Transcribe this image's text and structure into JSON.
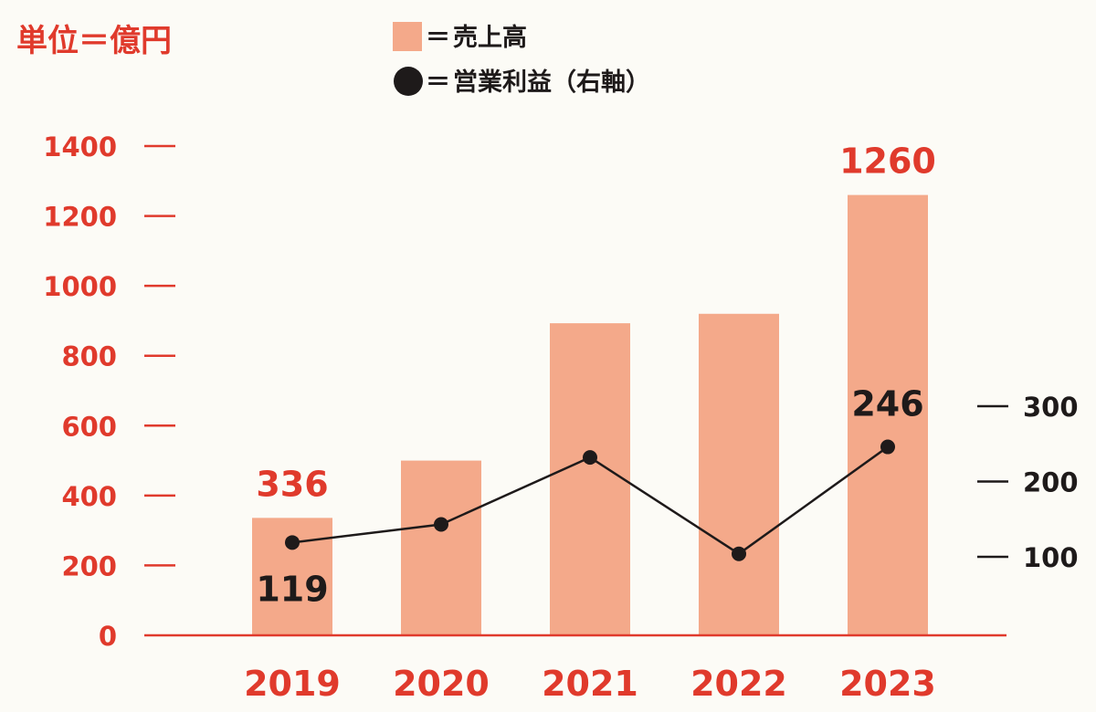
{
  "chart_data": {
    "type": "bar",
    "unit_label": "単位＝億円",
    "categories": [
      "2019",
      "2020",
      "2021",
      "2022",
      "2023"
    ],
    "series": [
      {
        "name": "売上高",
        "kind": "bar",
        "axis": "left",
        "values": [
          336,
          500,
          893,
          920,
          1260
        ],
        "data_labels": [
          "336",
          "",
          "",
          "",
          "1260"
        ]
      },
      {
        "name": "営業利益（右軸）",
        "kind": "line",
        "axis": "right",
        "values": [
          119,
          143,
          232,
          104,
          246
        ],
        "data_labels": [
          "119",
          "",
          "",
          "",
          "246"
        ]
      }
    ],
    "legend": [
      {
        "marker": "square",
        "symbol": "＝",
        "label": "売上高"
      },
      {
        "marker": "circle",
        "symbol": "＝",
        "label": "営業利益（右軸）"
      }
    ],
    "left_axis": {
      "ylim": [
        0,
        1400
      ],
      "ticks": [
        "0",
        "200",
        "400",
        "600",
        "800",
        "1000",
        "1200",
        "1400"
      ]
    },
    "right_axis": {
      "ylim": [
        0,
        300
      ],
      "ticks": [
        "100",
        "200",
        "300"
      ]
    },
    "colors": {
      "bar": "#f4a98a",
      "accent_red": "#e03a2c",
      "line": "#1e1a1a",
      "text_dark": "#1e1a1a",
      "background": "#fcfbf6"
    },
    "grid": false,
    "legend_position": "top-center"
  }
}
